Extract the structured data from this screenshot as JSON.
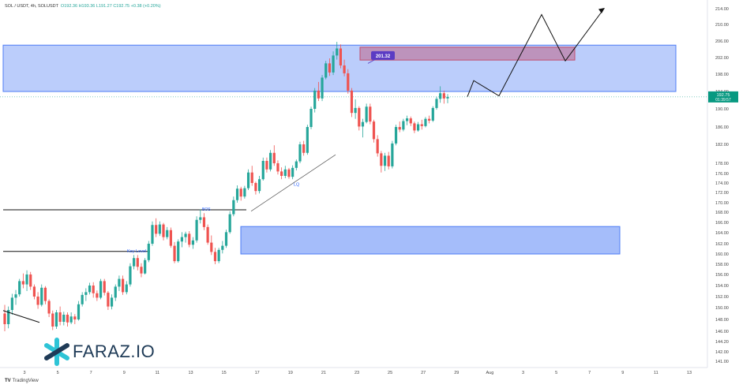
{
  "header": {
    "symbol": "SOL / USDT, 4h, SOLUSDT",
    "open": "O192.36",
    "high": "H193.36",
    "low": "L191.27",
    "close": "C192.75",
    "change": "+0.38 (+0.20%)"
  },
  "watermark": {
    "brand": "FARAZ.IO"
  },
  "footer": {
    "tradingview": "TradingView"
  },
  "colors": {
    "up": "#26a69a",
    "down": "#ef5350",
    "zone": "#4c7cf5",
    "supply": "#c24d6e",
    "price_tag": "#089981"
  },
  "chart_data": {
    "type": "candlestick",
    "x_ticks": [
      "3",
      "5",
      "7",
      "9",
      "11",
      "13",
      "15",
      "17",
      "19",
      "21",
      "23",
      "25",
      "27",
      "29",
      "Aug",
      "3",
      "5",
      "7",
      "9",
      "11",
      "13"
    ],
    "y_ticks": [
      "214.00",
      "210.00",
      "206.00",
      "202.00",
      "198.00",
      "194.00",
      "190.00",
      "186.00",
      "182.00",
      "178.00",
      "176.00",
      "174.00",
      "172.00",
      "170.00",
      "168.00",
      "166.00",
      "164.00",
      "162.00",
      "160.00",
      "158.00",
      "156.00",
      "154.00",
      "152.00",
      "150.00",
      "148.00",
      "146.00",
      "144.20",
      "142.00",
      "141.00"
    ],
    "last_price": "192.75",
    "countdown": "01:39:57",
    "annotations": {
      "high_label": "201.32",
      "liquidity_label": "LQ",
      "bos_label": "BOS",
      "key_level_label": "Key Level"
    },
    "zones": [
      {
        "kind": "resistance",
        "top": 205.0,
        "bottom": 194.0
      },
      {
        "kind": "supply",
        "top": 204.5,
        "bottom": 201.4
      },
      {
        "kind": "demand",
        "top": 165.2,
        "bottom": 160.0
      }
    ],
    "levels": {
      "bos": 168.5,
      "key_level": 160.5
    },
    "candles": [
      [
        149,
        150.5,
        146,
        147.2
      ],
      [
        147.2,
        150.2,
        146.5,
        149.6
      ],
      [
        149.6,
        152.5,
        148.8,
        151.8
      ],
      [
        151.8,
        153.2,
        150.5,
        152.4
      ],
      [
        152.4,
        155.2,
        152,
        154.8
      ],
      [
        154.8,
        156.2,
        153.5,
        154.2
      ],
      [
        154.2,
        156.8,
        153,
        156
      ],
      [
        156,
        156.5,
        153.2,
        153.8
      ],
      [
        153.8,
        154.2,
        151.5,
        152
      ],
      [
        152,
        152.8,
        149.8,
        150.5
      ],
      [
        150.5,
        154.2,
        150.2,
        153.6
      ],
      [
        153.6,
        153.9,
        150.6,
        151.2
      ],
      [
        151.2,
        151.5,
        148.4,
        149
      ],
      [
        149,
        149.5,
        146.2,
        146.8
      ],
      [
        146.8,
        149.6,
        146.4,
        149.2
      ],
      [
        149.2,
        150.2,
        147,
        147.6
      ],
      [
        147.6,
        149.3,
        147,
        148.8
      ],
      [
        148.8,
        149.2,
        146.8,
        147.5
      ],
      [
        147.5,
        149.2,
        147.2,
        148.5
      ],
      [
        148.5,
        148.9,
        147.2,
        148
      ],
      [
        148,
        151.2,
        147.8,
        150.6
      ],
      [
        150.6,
        152.8,
        150.2,
        152.3
      ],
      [
        152.3,
        153.5,
        151.2,
        152.8
      ],
      [
        152.8,
        154.5,
        152.4,
        154
      ],
      [
        154,
        154.6,
        151.8,
        152.6
      ],
      [
        152.6,
        153.1,
        151.2,
        151.8
      ],
      [
        151.8,
        155.2,
        151.5,
        154.8
      ],
      [
        154.8,
        155.2,
        152.2,
        152.7
      ],
      [
        152.7,
        153,
        149.6,
        150.2
      ],
      [
        150.2,
        152.4,
        149.7,
        151.8
      ],
      [
        151.8,
        154.2,
        151.2,
        153.8
      ],
      [
        153.8,
        155.8,
        153,
        155.2
      ],
      [
        155.2,
        155.8,
        152.3,
        152.8
      ],
      [
        152.8,
        154.8,
        152.4,
        154.2
      ],
      [
        154.2,
        158.2,
        153.8,
        157.6
      ],
      [
        157.6,
        159.8,
        157,
        159.2
      ],
      [
        159.2,
        159.8,
        156.8,
        157.5
      ],
      [
        157.5,
        158.2,
        155.5,
        156.2
      ],
      [
        156.2,
        159.2,
        156,
        158.8
      ],
      [
        158.8,
        162.5,
        158.4,
        162
      ],
      [
        162,
        166.2,
        161.6,
        165.5
      ],
      [
        165.5,
        166.8,
        163.2,
        163.8
      ],
      [
        163.8,
        166.2,
        163.4,
        165.6
      ],
      [
        165.6,
        165.9,
        162.6,
        163.2
      ],
      [
        163.2,
        165.1,
        162.8,
        164.5
      ],
      [
        164.5,
        165,
        161.2,
        161.6
      ],
      [
        161.6,
        162.3,
        158.2,
        158.6
      ],
      [
        158.6,
        162.8,
        158.3,
        162.4
      ],
      [
        162.4,
        164.1,
        161.3,
        163.2
      ],
      [
        163.2,
        164.2,
        162.2,
        163.8
      ],
      [
        163.8,
        164.3,
        161.3,
        161.8
      ],
      [
        161.8,
        163.2,
        161,
        162.6
      ],
      [
        162.6,
        167.2,
        162.2,
        166.5
      ],
      [
        166.5,
        168.6,
        165.8,
        167
      ],
      [
        167,
        167.8,
        164.5,
        165.1
      ],
      [
        165.1,
        165.6,
        161.8,
        162.2
      ],
      [
        162.2,
        163.5,
        159.8,
        160.4
      ],
      [
        160.4,
        161.2,
        158,
        158.6
      ],
      [
        158.6,
        161.2,
        158.2,
        160.8
      ],
      [
        160.8,
        162.5,
        160.1,
        161.6
      ],
      [
        161.6,
        164.6,
        161.2,
        164.1
      ],
      [
        164.1,
        168.2,
        163.8,
        167.6
      ],
      [
        167.6,
        171.2,
        167.2,
        170.5
      ],
      [
        170.5,
        173.5,
        170,
        172.8
      ],
      [
        172.8,
        173.2,
        170.4,
        171.2
      ],
      [
        171.2,
        173.4,
        170.8,
        172.9
      ],
      [
        172.9,
        176.8,
        172.5,
        176.2
      ],
      [
        176.2,
        177.5,
        173.4,
        174
      ],
      [
        174,
        174.3,
        171.6,
        172.3
      ],
      [
        172.3,
        175.5,
        171.8,
        174.8
      ],
      [
        174.8,
        179.2,
        174.5,
        178.5
      ],
      [
        178.5,
        179.2,
        176.2,
        176.8
      ],
      [
        176.8,
        180.8,
        176.4,
        180.2
      ],
      [
        180.2,
        181.8,
        177.5,
        178
      ],
      [
        178,
        178.6,
        175.8,
        176.4
      ],
      [
        176.4,
        177.2,
        174.8,
        175.5
      ],
      [
        175.5,
        177.5,
        175,
        176.8
      ],
      [
        176.8,
        177.1,
        174.9,
        175.3
      ],
      [
        175.3,
        177.6,
        174.8,
        177.1
      ],
      [
        177.1,
        178.8,
        176.6,
        178.4
      ],
      [
        178.4,
        182.6,
        178,
        182
      ],
      [
        182,
        182.8,
        179.6,
        180.2
      ],
      [
        180.2,
        186.5,
        179.8,
        186
      ],
      [
        186,
        190.5,
        185.5,
        190
      ],
      [
        190,
        194.8,
        189.2,
        194.2
      ],
      [
        194.2,
        196.2,
        191.8,
        192.4
      ],
      [
        192.4,
        197.8,
        191.8,
        197.2
      ],
      [
        197.2,
        201.2,
        196.8,
        200.6
      ],
      [
        200.6,
        201.8,
        197.6,
        198.4
      ],
      [
        198.4,
        203.5,
        197.8,
        202.5
      ],
      [
        202.5,
        205.8,
        201.5,
        204.2
      ],
      [
        204.2,
        205.2,
        199.4,
        200.1
      ],
      [
        200.1,
        201.5,
        197.5,
        198.2
      ],
      [
        198.2,
        199.2,
        193.5,
        194.2
      ],
      [
        194.2,
        194.8,
        188.2,
        189.1
      ],
      [
        189.1,
        192.2,
        187.8,
        190.2
      ],
      [
        190.2,
        190.6,
        185.2,
        186.1
      ],
      [
        186.1,
        187.8,
        183.6,
        187.1
      ],
      [
        187.1,
        191.2,
        186.8,
        190.5
      ],
      [
        190.5,
        191.2,
        186.6,
        187.2
      ],
      [
        187.2,
        187.6,
        182.4,
        183.2
      ],
      [
        183.2,
        184.1,
        179.4,
        180.1
      ],
      [
        180.1,
        180.6,
        176.2,
        177.5
      ],
      [
        177.5,
        180.2,
        176.5,
        179.6
      ],
      [
        179.6,
        180.4,
        176.8,
        177.4
      ],
      [
        177.4,
        182.8,
        177,
        182.2
      ],
      [
        182.2,
        186.5,
        181.8,
        186
      ],
      [
        186,
        187.2,
        184.8,
        185.4
      ],
      [
        185.4,
        187.8,
        185,
        187.3
      ],
      [
        187.3,
        188.5,
        186.4,
        187.9
      ],
      [
        187.9,
        188.3,
        186.2,
        186.8
      ],
      [
        186.8,
        187.2,
        184.6,
        185.2
      ],
      [
        185.2,
        187.1,
        184.9,
        186.6
      ],
      [
        186.6,
        187.6,
        185.4,
        186.2
      ],
      [
        186.2,
        188.2,
        185.9,
        187.8
      ],
      [
        187.8,
        188.5,
        186.8,
        187.4
      ],
      [
        187.4,
        190.6,
        187.1,
        190.2
      ],
      [
        190.2,
        192.8,
        189.8,
        192.3
      ],
      [
        192.3,
        195.2,
        191.4,
        193.6
      ],
      [
        193.6,
        194.2,
        191.2,
        192.4
      ],
      [
        192.4,
        193.4,
        191.3,
        192.75
      ]
    ],
    "projection": [
      [
        "29",
        192.8
      ],
      [
        "29",
        196.5
      ],
      [
        "30",
        193.0
      ],
      [
        "Aug 2",
        212.5
      ],
      [
        "4",
        201.2
      ],
      [
        "6",
        214.0
      ]
    ]
  }
}
